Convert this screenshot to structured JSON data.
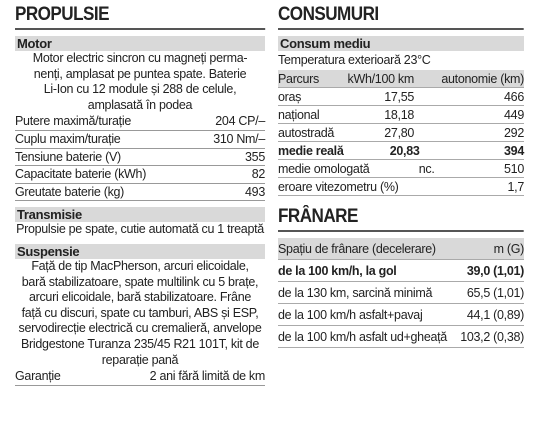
{
  "left": {
    "title": "PROPULSIE",
    "sections": [
      {
        "title": "Motor",
        "lines": [
          "Motor electric sincron cu magneți perma-",
          "nenți, amplasat pe puntea spate. Baterie",
          "Li-Ion cu 12 module și 288 de celule,",
          "amplasată în podea"
        ],
        "rows": [
          [
            "Putere maximă/turație",
            "204 CP/–"
          ],
          [
            "Cuplu maxim/turație",
            "310 Nm/–"
          ],
          [
            "Tensiune baterie (V)",
            "355"
          ],
          [
            "Capacitate baterie (kWh)",
            "82"
          ],
          [
            "Greutate baterie (kg)",
            "493"
          ]
        ]
      },
      {
        "title": "Transmisie",
        "lines": [
          "Propulsie pe spate, cutie automată cu 1 treaptă"
        ]
      },
      {
        "title": "Suspensie",
        "lines": [
          "Față de tip MacPherson, arcuri elicoidale,",
          "bară stabilizatoare, spate multilink cu 5 brațe,",
          "arcuri elicoidale, bară stabilizatoare. Frâne",
          "față cu discuri, spate cu tamburi, ABS și ESP,",
          "servodirecție electrică cu cremalieră, anvelope",
          "Bridgestone Turanza 235/45 R21 101T, kit de",
          "reparație pană"
        ],
        "rows": [
          [
            "Garanție",
            "2 ani fără limită de km"
          ]
        ]
      }
    ]
  },
  "consumuri": {
    "title": "CONSUMURI",
    "section": "Consum mediu",
    "note": "Temperatura exterioară 23°C",
    "header": [
      "Parcurs",
      "kWh/100 km",
      "autonomie (km)"
    ],
    "rows": [
      [
        "oraș",
        "17,55",
        "466"
      ],
      [
        "național",
        "18,18",
        "449"
      ],
      [
        "autostradă",
        "27,80",
        "292"
      ],
      [
        "medie reală",
        "20,83",
        "394"
      ],
      [
        "medie omologată",
        "nc.",
        "510"
      ],
      [
        "eroare vitezometru (%)",
        "1,7"
      ]
    ]
  },
  "franare": {
    "title": "FRÂNARE",
    "header": [
      "Spațiu de frânare (decelerare)",
      "m (G)"
    ],
    "rows": [
      [
        "de la 100 km/h, la gol",
        "39,0 (1,01)"
      ],
      [
        "de la 130 km, sarcină minimă",
        "65,5 (1,01)"
      ],
      [
        "de la 100 km/h asfalt+pavaj",
        "44,1 (0,89)"
      ],
      [
        "de la 100 km/h asfalt ud+gheață",
        "103,2 (0,38)"
      ]
    ]
  }
}
